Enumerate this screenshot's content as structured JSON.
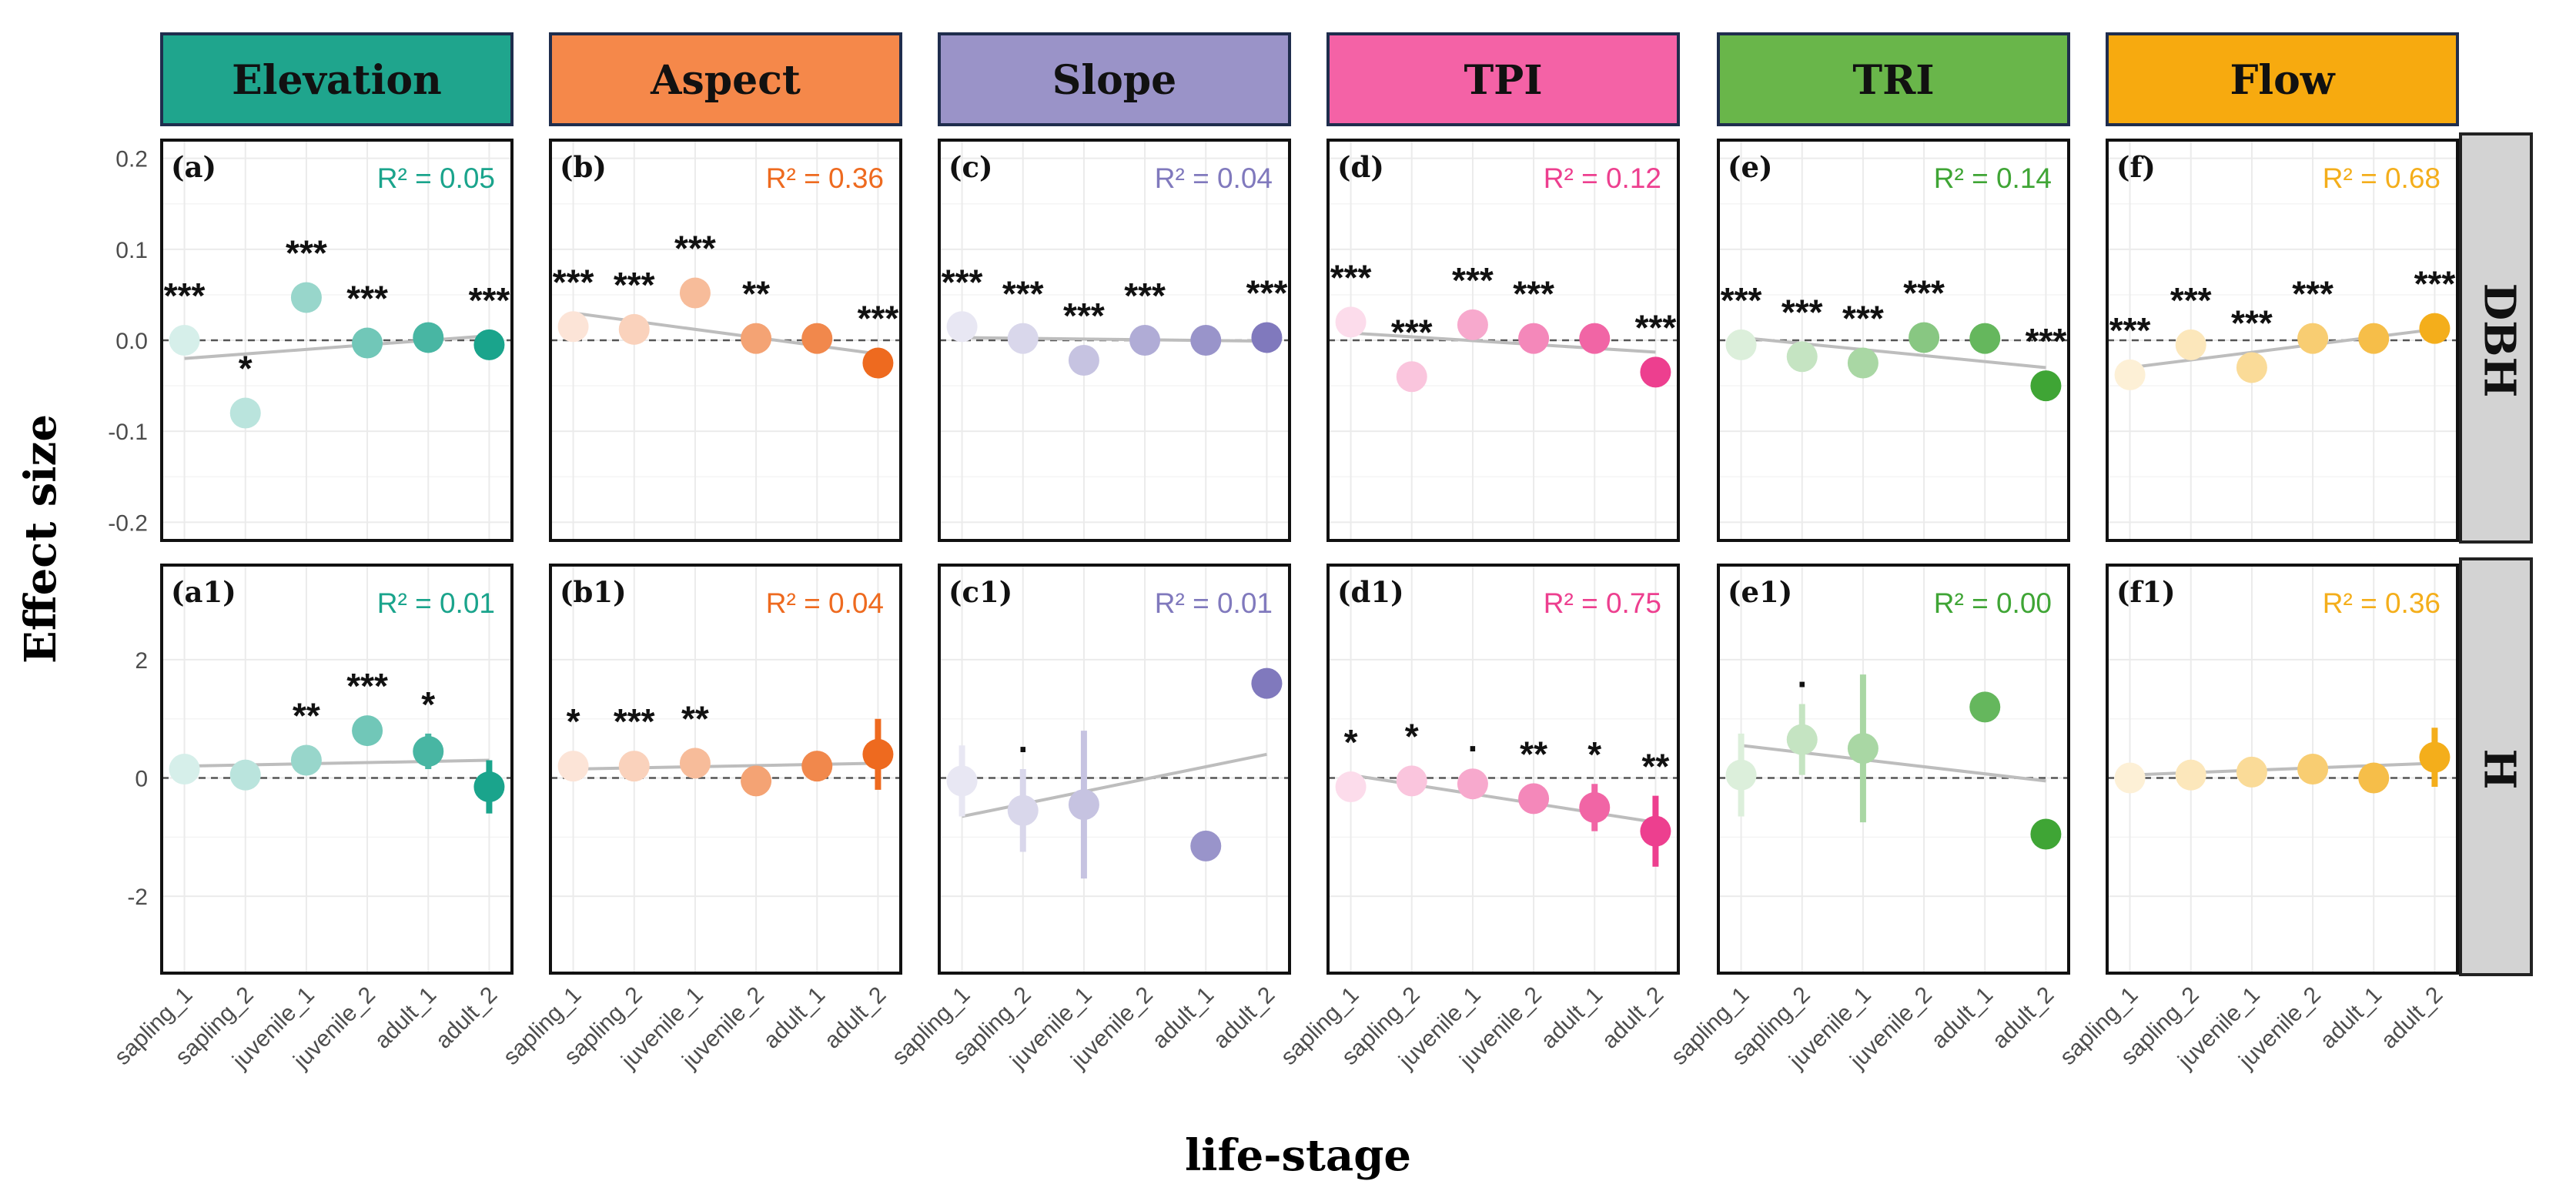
{
  "chart_data": {
    "type": "scatter",
    "xlabel": "life-stage",
    "ylabel": "Effect size",
    "categories": [
      "sapling_1",
      "sapling_2",
      "juvenile_1",
      "juvenile_2",
      "adult_1",
      "adult_2"
    ],
    "rows": [
      {
        "strip": "DBH",
        "ylim": [
          -0.22,
          0.22
        ],
        "ticks": [
          {
            "v": 0.2,
            "t": "0.2"
          },
          {
            "v": 0.1,
            "t": "0.1"
          },
          {
            "v": 0.0,
            "t": "0.0"
          },
          {
            "v": -0.1,
            "t": "-0.1"
          },
          {
            "v": -0.2,
            "t": "-0.2"
          }
        ]
      },
      {
        "strip": "H",
        "ylim": [
          -3.3,
          3.6
        ],
        "ticks": [
          {
            "v": 2,
            "t": "2"
          },
          {
            "v": 0,
            "t": "0"
          },
          {
            "v": -2,
            "t": "-2"
          }
        ]
      }
    ],
    "columns": [
      {
        "name": "Elevation",
        "color": "#1aa48c",
        "header_bg": "#1fa58d"
      },
      {
        "name": "Aspect",
        "color": "#ee6a1f",
        "header_bg": "#f5884a"
      },
      {
        "name": "Slope",
        "color": "#8079bd",
        "header_bg": "#9a93c8"
      },
      {
        "name": "TPI",
        "color": "#ed3f8f",
        "header_bg": "#f462a6"
      },
      {
        "name": "TRI",
        "color": "#3fa535",
        "header_bg": "#69b64a"
      },
      {
        "name": "Flow",
        "color": "#f4ae1b",
        "header_bg": "#f7aa0f"
      }
    ],
    "panels": [
      {
        "row": 0,
        "col": 0,
        "label": "(a)",
        "r2": "R² = 0.05",
        "values": [
          0.0,
          -0.08,
          0.047,
          -0.003,
          0.003,
          -0.005
        ],
        "err": [
          0.003,
          0.003,
          0.003,
          0.003,
          0.003,
          0.003
        ],
        "sig": [
          "***",
          "*",
          "***",
          "***",
          "",
          "***"
        ],
        "trend": [
          -0.02,
          0.005
        ]
      },
      {
        "row": 0,
        "col": 1,
        "label": "(b)",
        "r2": "R² = 0.36",
        "values": [
          0.015,
          0.012,
          0.052,
          0.002,
          0.002,
          -0.025
        ],
        "err": [
          0.003,
          0.003,
          0.003,
          0.003,
          0.003,
          0.003
        ],
        "sig": [
          "***",
          "***",
          "***",
          "**",
          "",
          "***"
        ],
        "trend": [
          0.03,
          -0.015
        ]
      },
      {
        "row": 0,
        "col": 2,
        "label": "(c)",
        "r2": "R² = 0.04",
        "values": [
          0.015,
          0.002,
          -0.022,
          0.0,
          0.0,
          0.003
        ],
        "err": [
          0.003,
          0.003,
          0.003,
          0.003,
          0.003,
          0.003
        ],
        "sig": [
          "***",
          "***",
          "***",
          "***",
          "",
          "***"
        ],
        "trend": [
          0.003,
          -0.001
        ]
      },
      {
        "row": 0,
        "col": 3,
        "label": "(d)",
        "r2": "R² = 0.12",
        "values": [
          0.02,
          -0.04,
          0.017,
          0.002,
          0.002,
          -0.035
        ],
        "err": [
          0.003,
          0.003,
          0.003,
          0.003,
          0.003,
          0.003
        ],
        "sig": [
          "***",
          "***",
          "***",
          "***",
          "",
          "***"
        ],
        "trend": [
          0.008,
          -0.013
        ]
      },
      {
        "row": 0,
        "col": 4,
        "label": "(e)",
        "r2": "R² = 0.14",
        "values": [
          -0.005,
          -0.018,
          -0.025,
          0.003,
          0.002,
          -0.05
        ],
        "err": [
          0.003,
          0.003,
          0.003,
          0.003,
          0.003,
          0.003
        ],
        "sig": [
          "***",
          "***",
          "***",
          "***",
          "",
          "***"
        ],
        "trend": [
          0.003,
          -0.03
        ]
      },
      {
        "row": 0,
        "col": 5,
        "label": "(f)",
        "r2": "R² = 0.68",
        "values": [
          -0.038,
          -0.005,
          -0.03,
          0.002,
          0.002,
          0.013
        ],
        "err": [
          0.003,
          0.003,
          0.003,
          0.003,
          0.003,
          0.003
        ],
        "sig": [
          "***",
          "***",
          "***",
          "***",
          "",
          "***"
        ],
        "trend": [
          -0.03,
          0.012
        ]
      },
      {
        "row": 1,
        "col": 0,
        "label": "(a1)",
        "r2": "R² = 0.01",
        "values": [
          0.15,
          0.05,
          0.3,
          0.8,
          0.45,
          -0.15
        ],
        "err": [
          0.15,
          0.15,
          0.2,
          0.25,
          0.3,
          0.45
        ],
        "sig": [
          "",
          "",
          "**",
          "***",
          "*",
          ""
        ],
        "trend": [
          0.2,
          0.3
        ]
      },
      {
        "row": 1,
        "col": 1,
        "label": "(b1)",
        "r2": "R² = 0.04",
        "values": [
          0.2,
          0.2,
          0.25,
          -0.05,
          0.2,
          0.4
        ],
        "err": [
          0.15,
          0.15,
          0.15,
          0.15,
          0.2,
          0.6
        ],
        "sig": [
          "*",
          "***",
          "**",
          "",
          "",
          ""
        ],
        "trend": [
          0.15,
          0.25
        ]
      },
      {
        "row": 1,
        "col": 2,
        "label": "(c1)",
        "r2": "R² = 0.01",
        "values": [
          -0.05,
          -0.55,
          -0.45,
          null,
          -1.15,
          1.6
        ],
        "err": [
          0.6,
          0.7,
          1.25,
          null,
          0.1,
          0.1
        ],
        "sig": [
          "",
          ".",
          "",
          "",
          "",
          ""
        ],
        "trend": [
          -0.65,
          0.4
        ]
      },
      {
        "row": 1,
        "col": 3,
        "label": "(d1)",
        "r2": "R² = 0.75",
        "values": [
          -0.15,
          -0.05,
          -0.1,
          -0.35,
          -0.5,
          -0.9
        ],
        "err": [
          0.15,
          0.15,
          0.2,
          0.2,
          0.4,
          0.6
        ],
        "sig": [
          "*",
          "*",
          ".",
          "**",
          "*",
          "**"
        ],
        "trend": [
          0.05,
          -0.75
        ]
      },
      {
        "row": 1,
        "col": 4,
        "label": "(e1)",
        "r2": "R² = 0.00",
        "values": [
          0.05,
          0.65,
          0.5,
          null,
          1.2,
          -0.95
        ],
        "err": [
          0.7,
          0.6,
          1.25,
          null,
          0.1,
          0.1
        ],
        "sig": [
          "",
          ".",
          "",
          "",
          "",
          ""
        ],
        "trend": [
          0.55,
          -0.05
        ]
      },
      {
        "row": 1,
        "col": 5,
        "label": "(f1)",
        "r2": "R² = 0.36",
        "values": [
          0.0,
          0.05,
          0.1,
          0.15,
          0.0,
          0.35
        ],
        "err": [
          0.1,
          0.1,
          0.15,
          0.15,
          0.15,
          0.5
        ],
        "sig": [
          "",
          "",
          "",
          "",
          "",
          ""
        ],
        "trend": [
          0.05,
          0.25
        ]
      }
    ]
  }
}
